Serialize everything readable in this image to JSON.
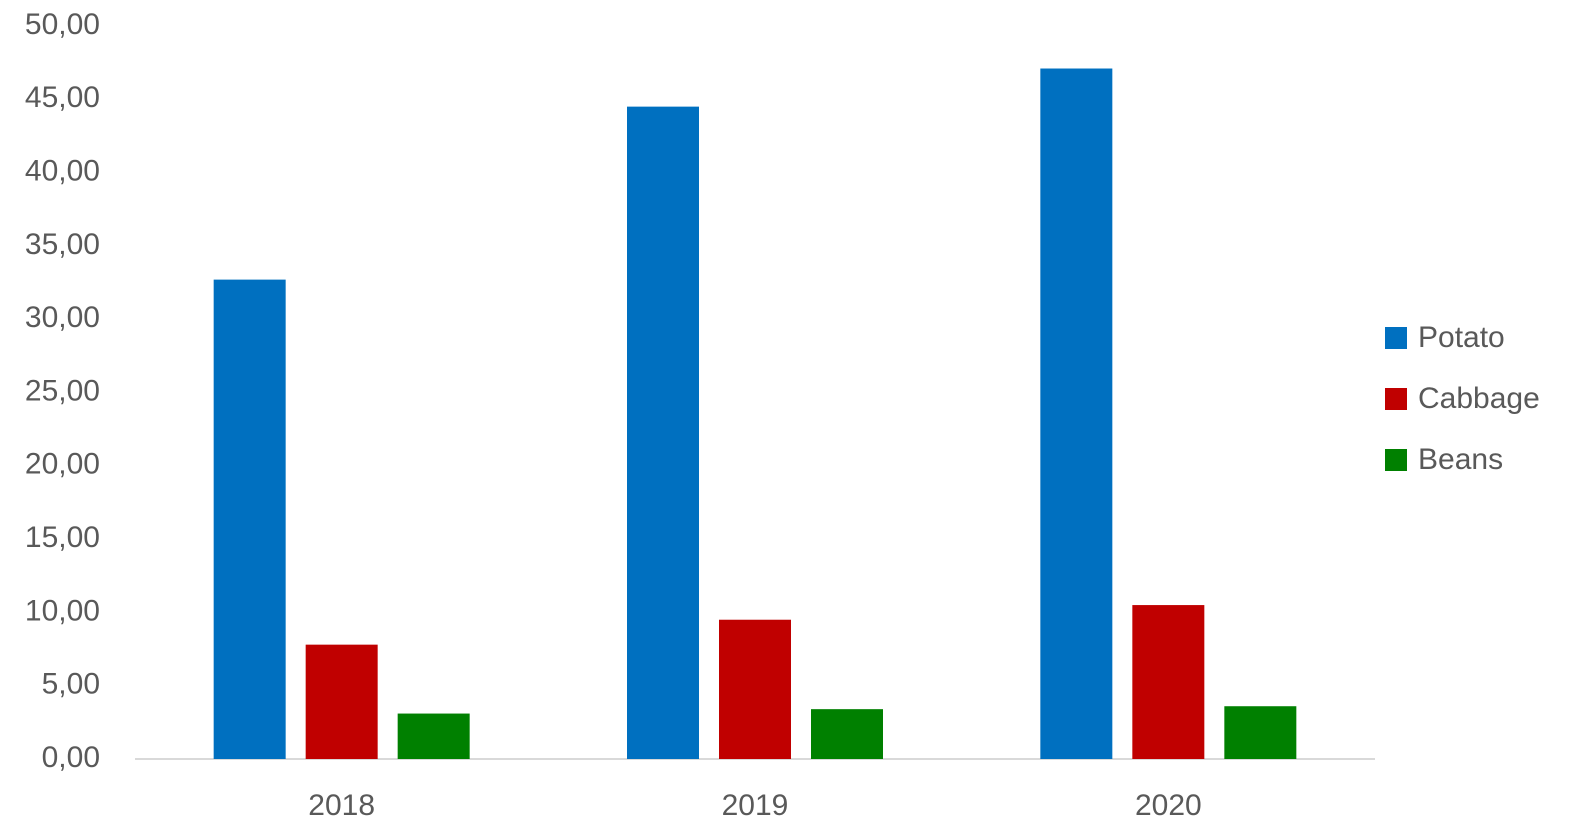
{
  "chart_data": {
    "type": "bar",
    "categories": [
      "2018",
      "2019",
      "2020"
    ],
    "series": [
      {
        "name": "Potato",
        "color": "#0070c0",
        "values": [
          32.7,
          44.5,
          47.1
        ]
      },
      {
        "name": "Cabbage",
        "color": "#c00000",
        "values": [
          7.8,
          9.5,
          10.5
        ]
      },
      {
        "name": "Beans",
        "color": "#008000",
        "values": [
          3.1,
          3.4,
          3.6
        ]
      }
    ],
    "ylim": [
      0,
      50
    ],
    "yticks": [
      {
        "value": 0,
        "label": "0,00"
      },
      {
        "value": 5,
        "label": "5,00"
      },
      {
        "value": 10,
        "label": "10,00"
      },
      {
        "value": 15,
        "label": "15,00"
      },
      {
        "value": 20,
        "label": "20,00"
      },
      {
        "value": 25,
        "label": "25,00"
      },
      {
        "value": 30,
        "label": "30,00"
      },
      {
        "value": 35,
        "label": "35,00"
      },
      {
        "value": 40,
        "label": "40,00"
      },
      {
        "value": 45,
        "label": "45,00"
      },
      {
        "value": 50,
        "label": "50,00"
      }
    ],
    "grid": false,
    "legend": "right"
  }
}
